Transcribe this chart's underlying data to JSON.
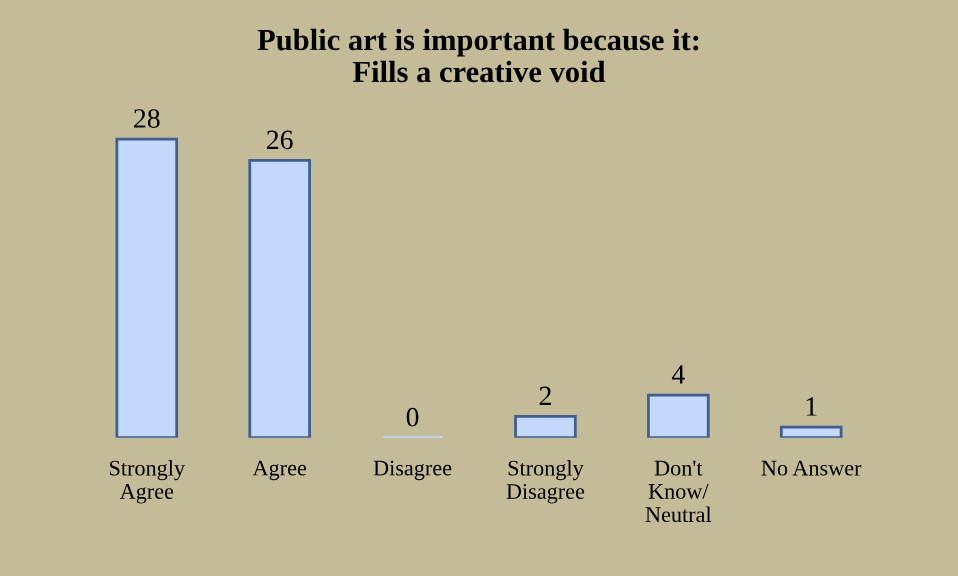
{
  "chart_data": {
    "type": "bar",
    "title": "Public art is important because it:\nFills a creative void",
    "categories": [
      "Strongly\nAgree",
      "Agree",
      "Disagree",
      "Strongly\nDisagree",
      "Don't\nKnow/\nNeutral",
      "No Answer"
    ],
    "values": [
      28,
      26,
      0,
      2,
      4,
      1
    ],
    "color": "#c4d8fb",
    "data_labels": true,
    "grid": false
  }
}
